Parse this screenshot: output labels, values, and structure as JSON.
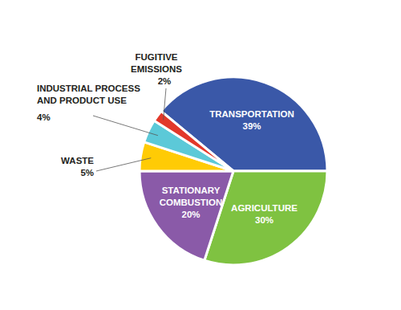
{
  "chart_data": {
    "type": "pie",
    "categories": [
      "TRANSPORTATION",
      "AGRICULTURE",
      "STATIONARY COMBUSTION",
      "WASTE",
      "INDUSTRIAL PROCESS AND PRODUCT USE",
      "FUGITIVE EMISSIONS"
    ],
    "values": [
      39,
      30,
      20,
      5,
      4,
      2
    ],
    "value_labels": [
      "39%",
      "30%",
      "20%",
      "5%",
      "4%",
      "2%"
    ],
    "colors": [
      "#3a58a8",
      "#7fc241",
      "#8a5aa8",
      "#ffcb05",
      "#5cc9d8",
      "#e2382a"
    ],
    "data_labels": true
  }
}
